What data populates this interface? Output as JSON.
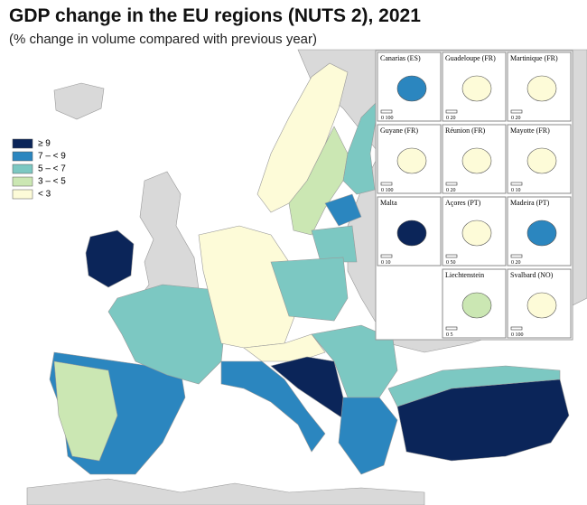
{
  "header": {
    "title": "GDP change in the EU regions (NUTS 2), 2021",
    "subtitle": "(% change in volume compared with previous year)"
  },
  "legend": [
    {
      "label": "≥ 9",
      "color": "#0b2559"
    },
    {
      "label": "7 – < 9",
      "color": "#2b86bf"
    },
    {
      "label": "5 – < 7",
      "color": "#7cc8c2"
    },
    {
      "label": "3 – < 5",
      "color": "#cbe7b3"
    },
    {
      "label": "< 3",
      "color": "#fdfbd8"
    }
  ],
  "insets": [
    {
      "name": "Canarias (ES)",
      "scale": "0  100"
    },
    {
      "name": "Guadeloupe (FR)",
      "scale": "0  20"
    },
    {
      "name": "Martinique (FR)",
      "scale": "0  20"
    },
    {
      "name": "Guyane (FR)",
      "scale": "0  100"
    },
    {
      "name": "Réunion (FR)",
      "scale": "0  20"
    },
    {
      "name": "Mayotte (FR)",
      "scale": "0  10"
    },
    {
      "name": "Malta",
      "scale": "0  10"
    },
    {
      "name": "Açores (PT)",
      "scale": "0  50"
    },
    {
      "name": "Madeira (PT)",
      "scale": "0  20"
    },
    {
      "name": "Liechtenstein",
      "scale": "0  5"
    },
    {
      "name": "Svalbard (NO)",
      "scale": "0  100"
    }
  ]
}
